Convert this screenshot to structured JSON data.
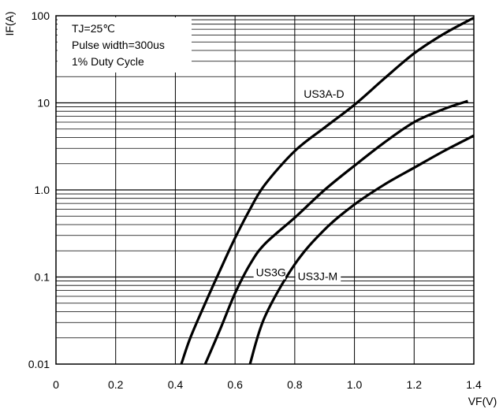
{
  "chart_data": {
    "type": "line",
    "title": "",
    "xlabel": "VF(V)",
    "ylabel": "IF(A)",
    "xlim": [
      0,
      1.4
    ],
    "ylim": [
      0.01,
      100
    ],
    "y_scale": "log",
    "grid": true,
    "x_ticks": [
      "0",
      "0.2",
      "0.4",
      "0.6",
      "0.8",
      "1.0",
      "1.2",
      "1.4"
    ],
    "x_tick_values": [
      0,
      0.2,
      0.4,
      0.6,
      0.8,
      1.0,
      1.2,
      1.4
    ],
    "y_ticks": [
      "0.01",
      "0.1",
      "1.0",
      "10",
      "100"
    ],
    "y_tick_values": [
      0.01,
      0.1,
      1,
      10,
      100
    ],
    "annotation": [
      "TJ=25℃",
      "Pulse width=300us",
      "1% Duty Cycle"
    ],
    "annotation_position": "top-left",
    "series": [
      {
        "name": "US3A-D",
        "label_at": [
          0.83,
          11.5
        ],
        "points": [
          [
            0.42,
            0.01
          ],
          [
            0.45,
            0.02
          ],
          [
            0.5,
            0.05
          ],
          [
            0.55,
            0.12
          ],
          [
            0.6,
            0.28
          ],
          [
            0.65,
            0.6
          ],
          [
            0.7,
            1.15
          ],
          [
            0.8,
            2.8
          ],
          [
            0.9,
            5.2
          ],
          [
            1.0,
            9.5
          ],
          [
            1.1,
            19
          ],
          [
            1.2,
            37
          ],
          [
            1.3,
            62
          ],
          [
            1.4,
            95
          ]
        ]
      },
      {
        "name": "US3G",
        "label_at": [
          0.67,
          0.102
        ],
        "points": [
          [
            0.5,
            0.01
          ],
          [
            0.55,
            0.025
          ],
          [
            0.6,
            0.065
          ],
          [
            0.65,
            0.14
          ],
          [
            0.7,
            0.24
          ],
          [
            0.8,
            0.48
          ],
          [
            0.9,
            1.0
          ],
          [
            1.0,
            1.9
          ],
          [
            1.1,
            3.5
          ],
          [
            1.2,
            6
          ],
          [
            1.3,
            8.5
          ],
          [
            1.38,
            10.5
          ]
        ]
      },
      {
        "name": "US3J-M",
        "label_at": [
          0.81,
          0.092
        ],
        "points": [
          [
            0.65,
            0.01
          ],
          [
            0.7,
            0.035
          ],
          [
            0.8,
            0.14
          ],
          [
            0.9,
            0.35
          ],
          [
            1.0,
            0.68
          ],
          [
            1.1,
            1.15
          ],
          [
            1.2,
            1.8
          ],
          [
            1.3,
            2.8
          ],
          [
            1.4,
            4.2
          ]
        ]
      }
    ]
  }
}
